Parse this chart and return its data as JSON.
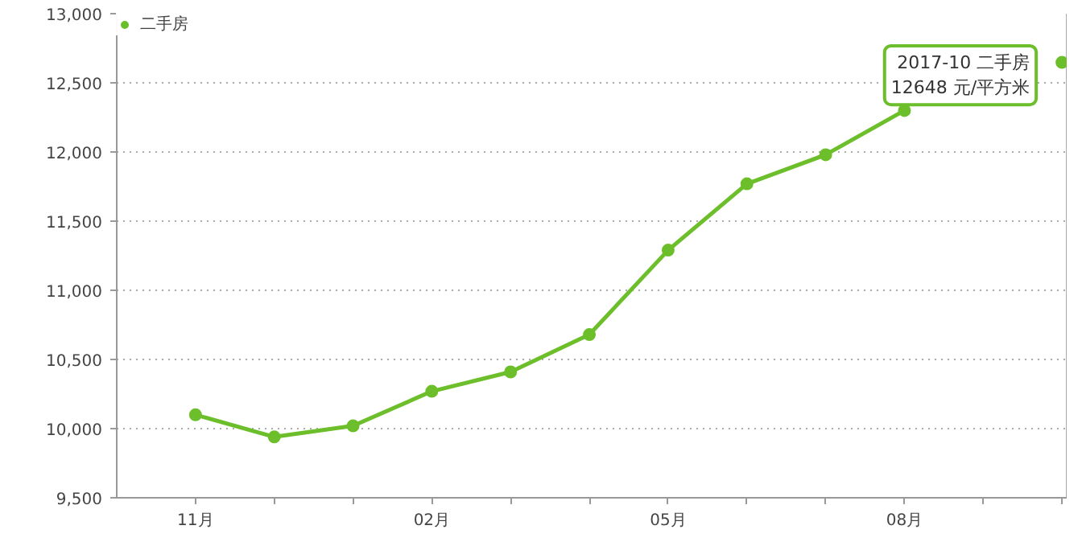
{
  "chart_data": {
    "type": "line",
    "categories": [
      "11月",
      null,
      null,
      "02月",
      null,
      null,
      "05月",
      null,
      null,
      "08月",
      null,
      null
    ],
    "series": [
      {
        "name": "二手房",
        "color": "#6cbf2a",
        "values": [
          10100,
          9940,
          10020,
          10270,
          10410,
          10680,
          11290,
          11770,
          11980,
          12300,
          null,
          12648
        ]
      }
    ],
    "ylim": [
      9500,
      13000
    ],
    "yticks": [
      {
        "value": 9500,
        "label": "9,500"
      },
      {
        "value": 10000,
        "label": "10,000"
      },
      {
        "value": 10500,
        "label": "10,500"
      },
      {
        "value": 11000,
        "label": "11,000"
      },
      {
        "value": 11500,
        "label": "11,500"
      },
      {
        "value": 12000,
        "label": "12,000"
      },
      {
        "value": 12500,
        "label": "12,500"
      },
      {
        "value": 13000,
        "label": "13,000"
      }
    ],
    "grid": "y",
    "legend": "top left",
    "marker": "circle",
    "line_style": "solid",
    "annotations": [
      "2017-10 二手房\n12648 元/平方米"
    ]
  }
}
